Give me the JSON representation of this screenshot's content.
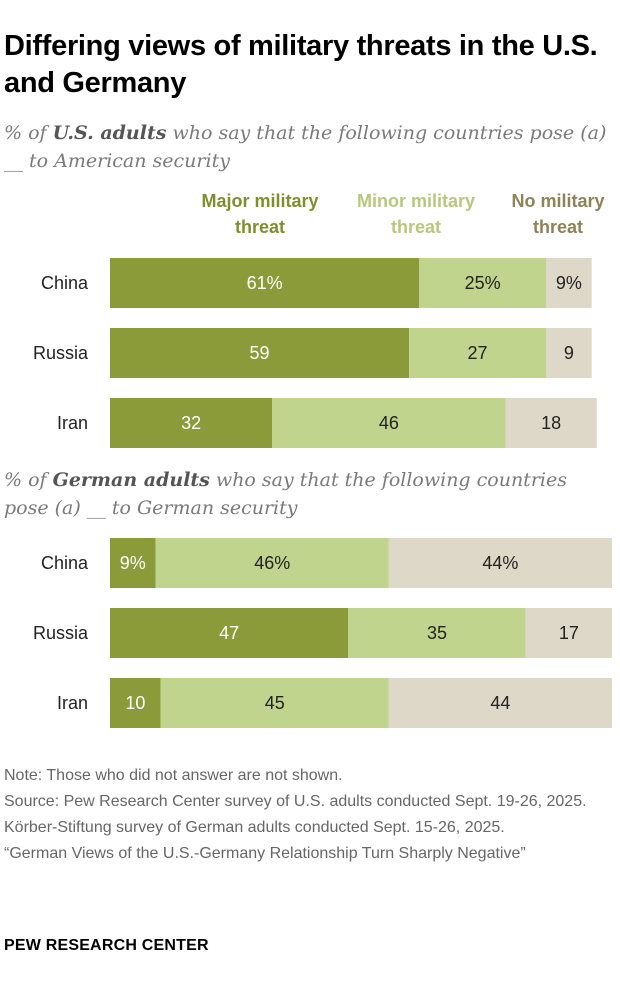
{
  "title": "Differing views of military threats in the U.S. and Germany",
  "us_subtitle": {
    "pre": "% of ",
    "bold": "U.S. adults",
    "post": " who say that the following countries pose (a) __ to American security"
  },
  "de_subtitle": {
    "pre": "% of ",
    "bold": "German adults",
    "post": " who say that the following countries pose (a) __ to German security"
  },
  "legend": [
    {
      "label": "Major military threat",
      "color": "#8c9b3a"
    },
    {
      "label": "Minor military threat",
      "color": "#bfcf87"
    },
    {
      "label": "No military threat",
      "color": "#8f8258"
    }
  ],
  "colors": {
    "major": "#8c9b3a",
    "minor": "#c1d48d",
    "none": "#ddd8c7"
  },
  "chart_data": [
    {
      "type": "bar",
      "orientation": "horizontal",
      "stacked": true,
      "categories": [
        "China",
        "Russia",
        "Iran"
      ],
      "series": [
        {
          "name": "Major military threat",
          "values": [
            61,
            59,
            32
          ],
          "labels": [
            "61%",
            "59",
            "32"
          ]
        },
        {
          "name": "Minor military threat",
          "values": [
            25,
            27,
            46
          ],
          "labels": [
            "25%",
            "27",
            "46"
          ]
        },
        {
          "name": "No military threat",
          "values": [
            9,
            9,
            18
          ],
          "labels": [
            "9%",
            "9",
            "18"
          ]
        }
      ]
    },
    {
      "type": "bar",
      "orientation": "horizontal",
      "stacked": true,
      "categories": [
        "China",
        "Russia",
        "Iran"
      ],
      "series": [
        {
          "name": "Major military threat",
          "values": [
            9,
            47,
            10
          ],
          "labels": [
            "9%",
            "47",
            "10"
          ]
        },
        {
          "name": "Minor military threat",
          "values": [
            46,
            35,
            45
          ],
          "labels": [
            "46%",
            "35",
            "45"
          ]
        },
        {
          "name": "No military threat",
          "values": [
            44,
            17,
            44
          ],
          "labels": [
            "44%",
            "17",
            "44"
          ]
        }
      ]
    }
  ],
  "footer": {
    "note": "Note: Those who did not answer are not shown.",
    "source": "Source: Pew Research Center survey of U.S. adults conducted Sept. 19-26, 2025. Körber-Stiftung survey of German adults conducted Sept. 15-26, 2025.",
    "report": "“German Views of the U.S.-Germany Relationship Turn Sharply Negative”",
    "brand": "PEW RESEARCH CENTER"
  }
}
